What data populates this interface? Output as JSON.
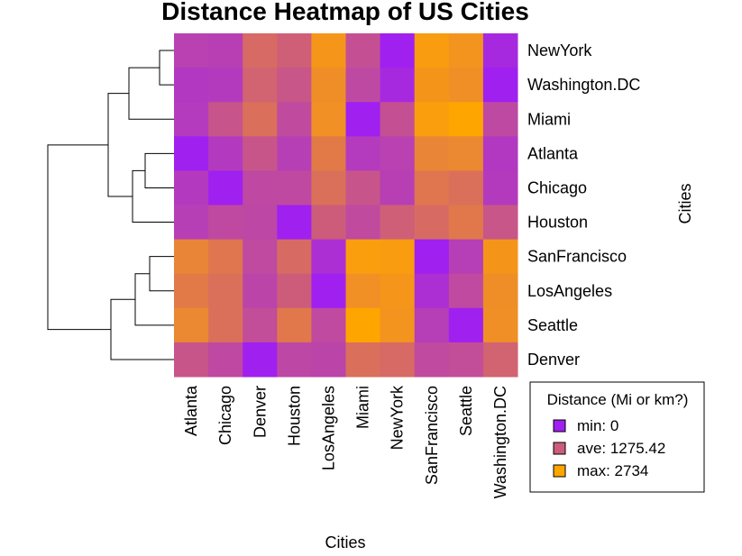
{
  "chart_data": {
    "type": "heatmap",
    "title": "Distance Heatmap of US Cities",
    "xlabel": "Cities",
    "ylabel": "Cities",
    "columns": [
      "Atlanta",
      "Chicago",
      "Denver",
      "Houston",
      "LosAngeles",
      "Miami",
      "NewYork",
      "SanFrancisco",
      "Seattle",
      "Washington.DC"
    ],
    "rows": [
      "NewYork",
      "Washington.DC",
      "Miami",
      "Atlanta",
      "Chicago",
      "Houston",
      "SanFrancisco",
      "LosAngeles",
      "Seattle",
      "Denver"
    ],
    "values": [
      [
        748,
        713,
        1631,
        1420,
        2451,
        1092,
        0,
        2571,
        2408,
        205
      ],
      [
        543,
        597,
        1494,
        1220,
        2300,
        923,
        205,
        2442,
        2329,
        0
      ],
      [
        604,
        1188,
        1726,
        968,
        2339,
        0,
        1092,
        2594,
        2734,
        923
      ],
      [
        0,
        587,
        1212,
        701,
        1936,
        604,
        748,
        2139,
        2182,
        543
      ],
      [
        587,
        0,
        920,
        940,
        1745,
        1188,
        713,
        1858,
        1737,
        597
      ],
      [
        701,
        940,
        879,
        0,
        1374,
        968,
        1420,
        1645,
        1891,
        1220
      ],
      [
        2139,
        1858,
        949,
        1645,
        347,
        2594,
        2571,
        0,
        678,
        2442
      ],
      [
        1936,
        1745,
        831,
        1374,
        0,
        2339,
        2451,
        347,
        959,
        2300
      ],
      [
        2182,
        1737,
        1021,
        1891,
        959,
        2734,
        2408,
        678,
        0,
        2329
      ],
      [
        1212,
        920,
        0,
        879,
        831,
        1726,
        1631,
        949,
        1021,
        1494
      ]
    ],
    "colors": {
      "min": "#a020f0",
      "mid": "#cd5c7c",
      "max": "#ffa500"
    },
    "legend": {
      "title": "Distance (Mi or km?)",
      "placement": "bottom-right",
      "entries": [
        {
          "label": "min: 0",
          "color": "#a020f0"
        },
        {
          "label": "ave: 1275.42",
          "color": "#cd5c7c"
        },
        {
          "label": "max: 2734",
          "color": "#ffa500"
        }
      ]
    },
    "row_dendrogram": true
  }
}
